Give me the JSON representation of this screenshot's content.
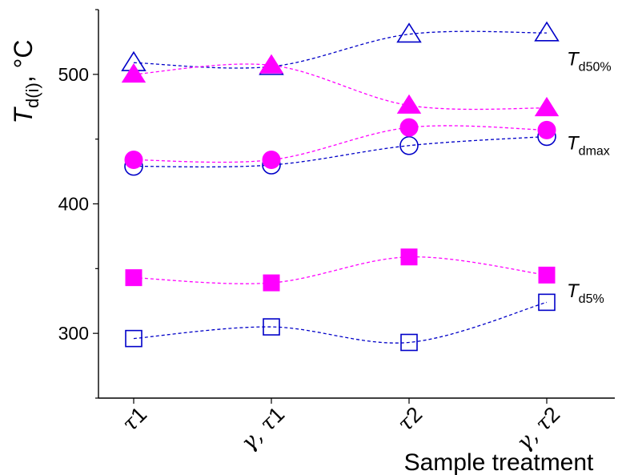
{
  "chart_data": {
    "type": "scatter",
    "title": "",
    "xlabel": "Sample treatment",
    "ylabel": {
      "main": "T",
      "sub": "d(i)",
      "unit": ", °C"
    },
    "categories": [
      {
        "main": "τ1",
        "prefix": "",
        "sym": "τ",
        "num": "1"
      },
      {
        "main": "γ, τ1",
        "prefix": "γ, ",
        "sym": "τ",
        "num": "1"
      },
      {
        "main": "τ2",
        "prefix": "",
        "sym": "τ",
        "num": "2"
      },
      {
        "main": "γ, τ2",
        "prefix": "γ, ",
        "sym": "τ",
        "num": "2"
      }
    ],
    "ylim": [
      250,
      550
    ],
    "yticks": [
      300,
      400,
      500
    ],
    "grid": false,
    "colors": {
      "blue": "#0000c8",
      "magenta": "#ff00ff"
    },
    "series": [
      {
        "group": "Td50%",
        "marker": "triangle",
        "filled": false,
        "color": "#0000c8",
        "values": [
          509,
          506,
          531,
          532
        ]
      },
      {
        "group": "Td50%",
        "marker": "triangle",
        "filled": true,
        "color": "#ff00ff",
        "values": [
          500,
          507,
          476,
          474
        ]
      },
      {
        "group": "Tdmax",
        "marker": "circle",
        "filled": false,
        "color": "#0000c8",
        "values": [
          429,
          430,
          445,
          452
        ]
      },
      {
        "group": "Tdmax",
        "marker": "circle",
        "filled": true,
        "color": "#ff00ff",
        "values": [
          434,
          434,
          459,
          457
        ]
      },
      {
        "group": "Td5%",
        "marker": "square",
        "filled": true,
        "color": "#ff00ff",
        "values": [
          343,
          339,
          359,
          345
        ]
      },
      {
        "group": "Td5%",
        "marker": "square",
        "filled": false,
        "color": "#0000c8",
        "values": [
          296,
          305,
          293,
          324
        ]
      }
    ],
    "annotations": [
      {
        "main": "T",
        "sub": "d50%",
        "y": 512
      },
      {
        "main": "T",
        "sub": "dmax",
        "y": 447
      },
      {
        "main": "T",
        "sub": "d5%",
        "y": 333
      }
    ]
  }
}
